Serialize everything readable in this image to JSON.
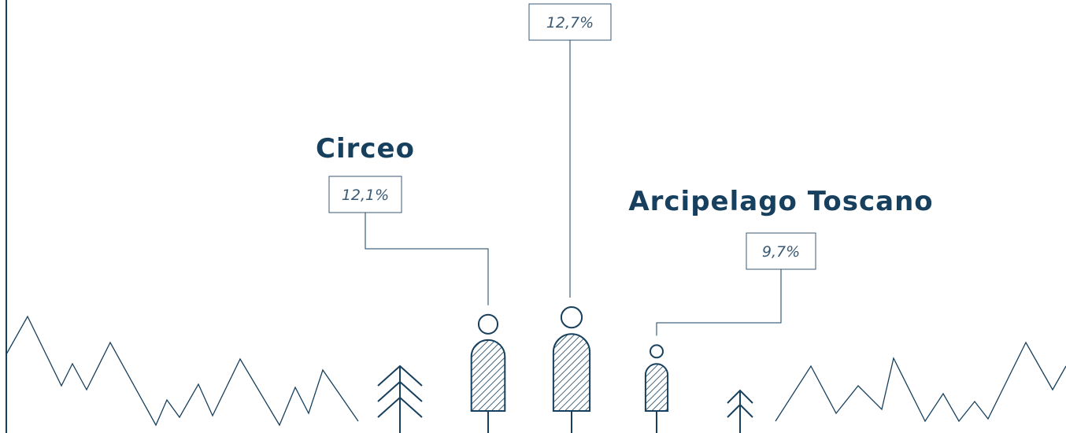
{
  "chart_data": {
    "type": "pictogram",
    "categories": [
      "Circeo",
      null,
      "Arcipelago Toscano"
    ],
    "values": [
      12.1,
      12.7,
      9.7
    ],
    "value_labels": [
      "12,1%",
      "12,7%",
      "9,7%"
    ],
    "color": "#17405e"
  }
}
